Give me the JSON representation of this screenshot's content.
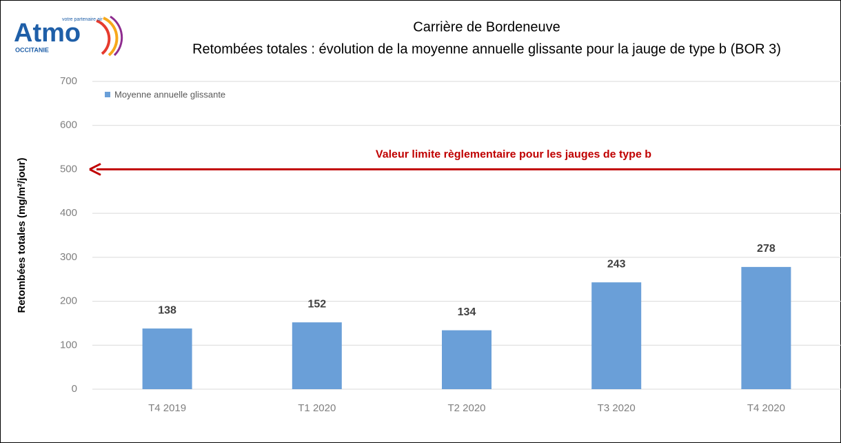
{
  "chart_data": {
    "type": "bar",
    "title": "Carrière de Bordeneuve",
    "subtitle": "Retombées totales  : évolution de la moyenne annuelle glissante pour la jauge de type b (BOR 3)",
    "y_label": "Retombées totales (mg/m²/jour)",
    "categories": [
      "T4 2019",
      "T1 2020",
      "T2 2020",
      "T3 2020",
      "T4 2020"
    ],
    "series": [
      {
        "name": "Moyenne annuelle glissante",
        "color": "#6a9fd8",
        "values": [
          138,
          152,
          134,
          243,
          278
        ]
      }
    ],
    "ylim": [
      0,
      700
    ],
    "yticks": [
      0,
      100,
      200,
      300,
      400,
      500,
      600,
      700
    ],
    "grid": true,
    "legend": "top-left",
    "threshold": {
      "value": 500,
      "label": "Valeur limite règlementaire pour les jauges de type b",
      "color": "#c00000"
    },
    "logo": {
      "name": "Atmo",
      "region": "OCCITANIE",
      "tagline": "votre partenaire air"
    }
  }
}
